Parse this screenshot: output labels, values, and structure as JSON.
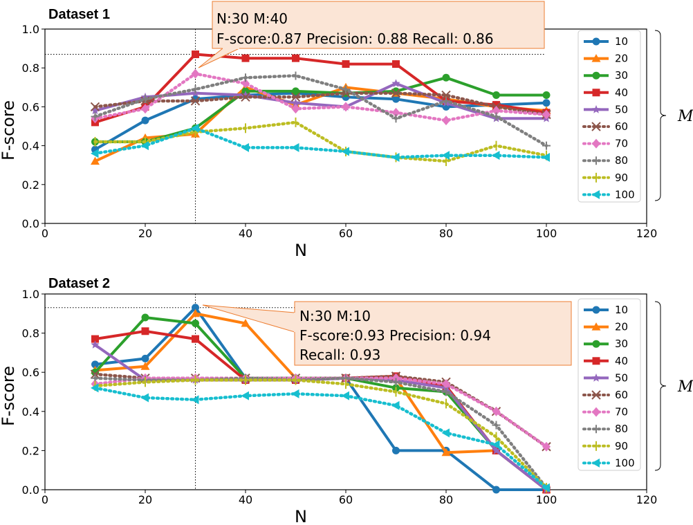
{
  "colors": {
    "axes": "#000000",
    "callout_fill": "#fbe5d6",
    "callout_stroke": "#ed7d31",
    "series": [
      "#1f77b4",
      "#ff7f0e",
      "#2ca02c",
      "#d62728",
      "#9467bd",
      "#8c564b",
      "#e377c2",
      "#7f7f7f",
      "#bcbd22",
      "#17becf"
    ]
  },
  "chart_data": [
    {
      "type": "line",
      "title": "Dataset 1",
      "xlabel": "N",
      "ylabel": "F-score",
      "xlim": [
        0,
        120
      ],
      "ylim": [
        0,
        1.0
      ],
      "xticks": [
        "0",
        "20",
        "40",
        "60",
        "80",
        "100",
        "120"
      ],
      "yticks": [
        "0.0",
        "0.2",
        "0.4",
        "0.6",
        "0.8",
        "1.0"
      ],
      "grid": false,
      "legend_placement": "right",
      "group_label": "M",
      "x": [
        10,
        20,
        30,
        40,
        50,
        60,
        70,
        80,
        90,
        100
      ],
      "series": [
        {
          "name": "10",
          "marker": "circle",
          "dash": "solid",
          "values": [
            0.38,
            0.53,
            0.64,
            0.66,
            0.67,
            0.65,
            0.64,
            0.6,
            0.61,
            0.62
          ]
        },
        {
          "name": "20",
          "marker": "triangle-up",
          "dash": "solid",
          "values": [
            0.32,
            0.44,
            0.46,
            0.7,
            0.61,
            0.7,
            0.67,
            0.64,
            0.6,
            0.58
          ]
        },
        {
          "name": "30",
          "marker": "circle",
          "dash": "solid",
          "values": [
            0.42,
            0.42,
            0.49,
            0.68,
            0.68,
            0.67,
            0.68,
            0.75,
            0.66,
            0.66
          ]
        },
        {
          "name": "40",
          "marker": "square",
          "dash": "solid",
          "values": [
            0.52,
            0.6,
            0.87,
            0.85,
            0.85,
            0.82,
            0.82,
            0.63,
            0.61,
            0.57
          ]
        },
        {
          "name": "50",
          "marker": "star",
          "dash": "solid",
          "values": [
            0.58,
            0.65,
            0.67,
            0.66,
            0.62,
            0.6,
            0.72,
            0.62,
            0.54,
            0.54
          ]
        },
        {
          "name": "60",
          "marker": "x",
          "dash": "dotted",
          "values": [
            0.6,
            0.63,
            0.63,
            0.65,
            0.65,
            0.67,
            0.67,
            0.66,
            0.6,
            0.56
          ]
        },
        {
          "name": "70",
          "marker": "diamond",
          "dash": "dotted",
          "values": [
            0.54,
            0.59,
            0.77,
            0.72,
            0.59,
            0.6,
            0.57,
            0.53,
            0.58,
            0.56
          ]
        },
        {
          "name": "80",
          "marker": "plus",
          "dash": "dotted",
          "values": [
            0.55,
            0.64,
            0.69,
            0.75,
            0.76,
            0.69,
            0.54,
            0.63,
            0.55,
            0.4
          ]
        },
        {
          "name": "90",
          "marker": "vline",
          "dash": "dotted",
          "values": [
            0.42,
            0.42,
            0.47,
            0.49,
            0.52,
            0.37,
            0.34,
            0.32,
            0.4,
            0.35
          ]
        },
        {
          "name": "100",
          "marker": "triangle-left",
          "dash": "dotted",
          "values": [
            0.36,
            0.4,
            0.49,
            0.39,
            0.39,
            0.37,
            0.34,
            0.35,
            0.35,
            0.34
          ]
        }
      ],
      "highlight": {
        "x": 30,
        "y": 0.87
      },
      "callout": [
        "N:30 M:40",
        "F-score:0.87 Precision: 0.88 Recall: 0.86"
      ]
    },
    {
      "type": "line",
      "title": "Dataset 2",
      "xlabel": "N",
      "ylabel": "F-score",
      "xlim": [
        0,
        120
      ],
      "ylim": [
        0,
        1.0
      ],
      "xticks": [
        "0",
        "20",
        "40",
        "60",
        "80",
        "100",
        "120"
      ],
      "yticks": [
        "0.0",
        "0.2",
        "0.4",
        "0.6",
        "0.8",
        "1.0"
      ],
      "grid": false,
      "legend_placement": "right",
      "group_label": "M",
      "x": [
        10,
        20,
        30,
        40,
        50,
        60,
        70,
        80,
        90,
        100
      ],
      "series": [
        {
          "name": "10",
          "marker": "circle",
          "dash": "solid",
          "values": [
            0.64,
            0.67,
            0.93,
            0.57,
            0.57,
            0.57,
            0.2,
            0.2,
            0.0,
            0.0
          ]
        },
        {
          "name": "20",
          "marker": "triangle-up",
          "dash": "solid",
          "values": [
            0.61,
            0.63,
            0.9,
            0.85,
            0.57,
            0.57,
            0.57,
            0.19,
            0.2,
            0.0
          ]
        },
        {
          "name": "30",
          "marker": "circle",
          "dash": "solid",
          "values": [
            0.6,
            0.88,
            0.85,
            0.57,
            0.57,
            0.57,
            0.52,
            0.5,
            0.2,
            0.0
          ]
        },
        {
          "name": "40",
          "marker": "square",
          "dash": "solid",
          "values": [
            0.77,
            0.81,
            0.77,
            0.56,
            0.56,
            0.57,
            0.58,
            0.53,
            0.2,
            0.0
          ]
        },
        {
          "name": "50",
          "marker": "star",
          "dash": "solid",
          "values": [
            0.74,
            0.56,
            0.56,
            0.56,
            0.56,
            0.57,
            0.56,
            0.52,
            0.2,
            0.0
          ]
        },
        {
          "name": "60",
          "marker": "x",
          "dash": "dotted",
          "values": [
            0.59,
            0.57,
            0.57,
            0.57,
            0.57,
            0.57,
            0.58,
            0.55,
            0.4,
            0.22
          ]
        },
        {
          "name": "70",
          "marker": "diamond",
          "dash": "dotted",
          "values": [
            0.54,
            0.57,
            0.57,
            0.57,
            0.57,
            0.57,
            0.57,
            0.54,
            0.4,
            0.22
          ]
        },
        {
          "name": "80",
          "marker": "plus",
          "dash": "dotted",
          "values": [
            0.57,
            0.56,
            0.56,
            0.57,
            0.56,
            0.57,
            0.55,
            0.5,
            0.33,
            0.01
          ]
        },
        {
          "name": "90",
          "marker": "vline",
          "dash": "dotted",
          "values": [
            0.53,
            0.55,
            0.56,
            0.56,
            0.56,
            0.54,
            0.5,
            0.44,
            0.27,
            0.01
          ]
        },
        {
          "name": "100",
          "marker": "triangle-left",
          "dash": "dotted",
          "values": [
            0.52,
            0.47,
            0.46,
            0.48,
            0.49,
            0.48,
            0.43,
            0.29,
            0.23,
            0.01
          ]
        }
      ],
      "highlight": {
        "x": 30,
        "y": 0.93
      },
      "callout": [
        "N:30 M:10",
        "F-score:0.93 Precision: 0.94",
        "Recall: 0.93"
      ]
    }
  ]
}
